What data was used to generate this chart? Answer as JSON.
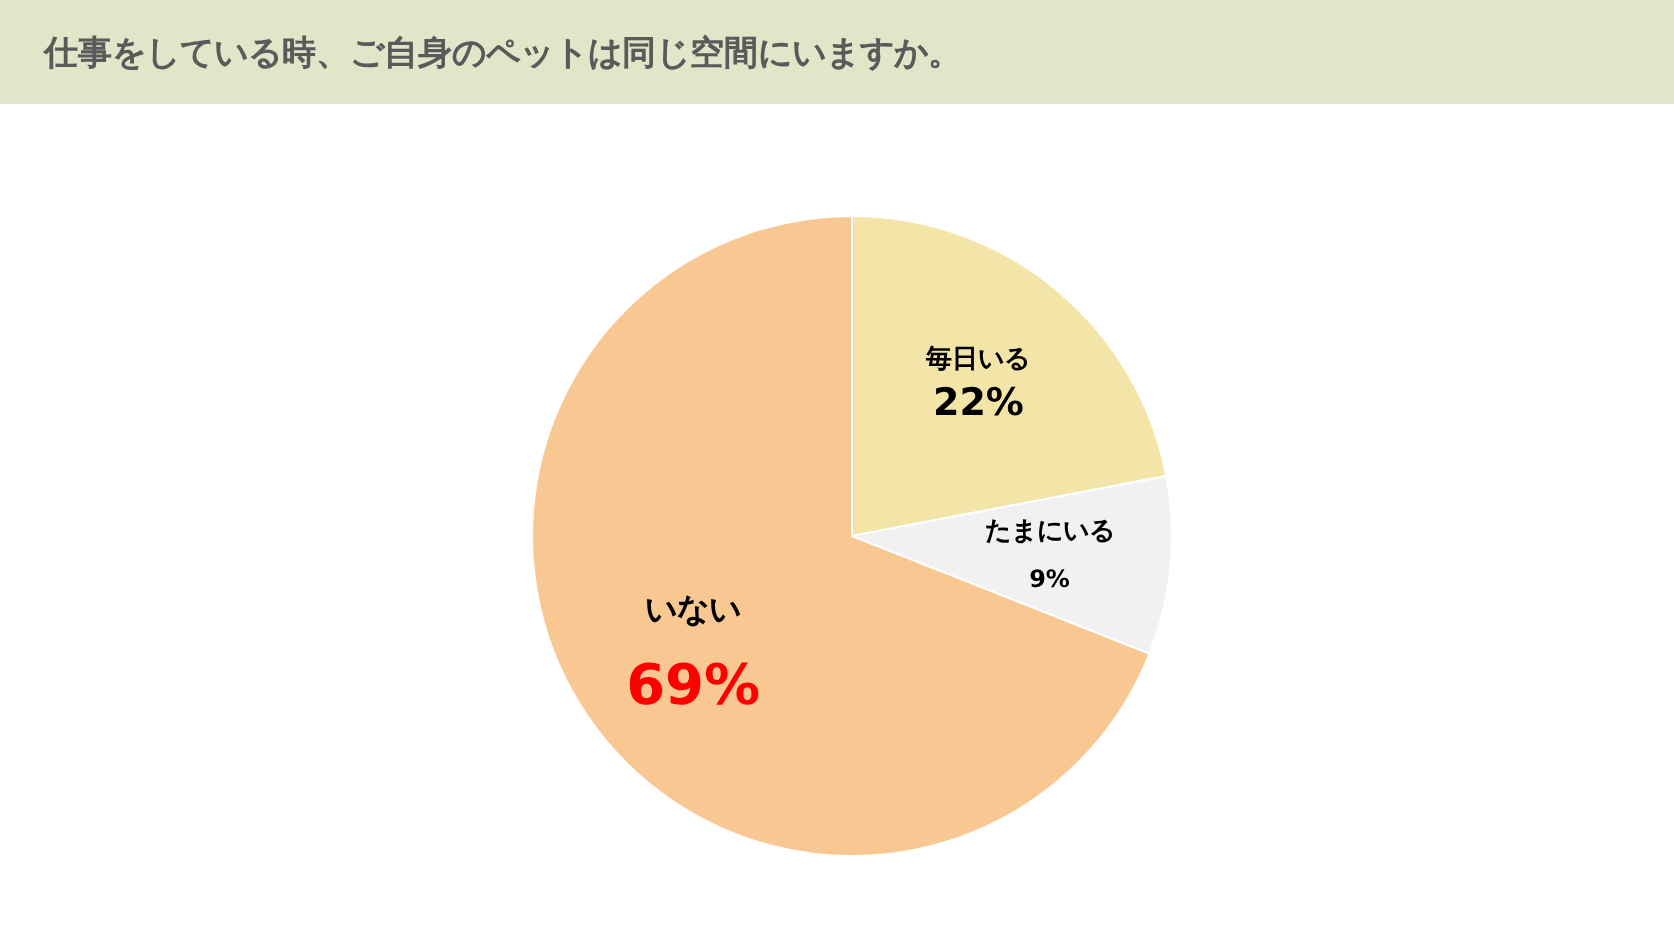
{
  "chart_data": {
    "type": "pie",
    "title": "仕事をしている時、ご自身のペットは同じ空間にいますか。",
    "categories": [
      "毎日いる",
      "たまにいる",
      "いない"
    ],
    "values": [
      22,
      9,
      69
    ],
    "value_labels": [
      "22%",
      "9%",
      "69%"
    ],
    "colors": [
      "#f3e4a8",
      "#f1f1f1",
      "#f9c892"
    ]
  }
}
